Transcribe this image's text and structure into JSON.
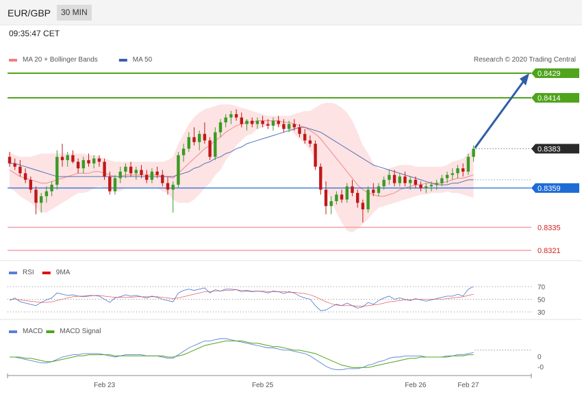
{
  "header": {
    "symbol": "EUR/GBP",
    "timeframe": "30 MIN",
    "time": "09:35:47 CET"
  },
  "legend": {
    "main": [
      {
        "name": "MA 20 + Bollinger Bands",
        "color": "#f08080"
      },
      {
        "name": "MA 50",
        "color": "#3b5ea8"
      }
    ],
    "rsi": [
      {
        "name": "RSI",
        "color": "#5b7fd6"
      },
      {
        "name": "9MA",
        "color": "#e01010"
      }
    ],
    "macd": [
      {
        "name": "MACD",
        "color": "#5b7fd6"
      },
      {
        "name": "MACD Signal",
        "color": "#4fa41c"
      }
    ]
  },
  "credit": "Research © 2020 Trading Central",
  "colors": {
    "up": "#3b9a26",
    "down": "#c01818",
    "bb_fill": "#fde0e0",
    "target": "#4fa41c",
    "pivot": "#1e6bd6",
    "support": "#f4a0a8",
    "arrow": "#2f5ea8"
  },
  "levels": [
    {
      "value": 0.8429,
      "label": "0.8429",
      "kind": "target"
    },
    {
      "value": 0.8414,
      "label": "0.8414",
      "kind": "target"
    },
    {
      "value": 0.8383,
      "label": "0.8383",
      "kind": "last"
    },
    {
      "value": 0.8359,
      "label": "0.8359",
      "kind": "pivot"
    },
    {
      "value": 0.8335,
      "label": "0.8335",
      "kind": "support"
    },
    {
      "value": 0.8321,
      "label": "0.8321",
      "kind": "support"
    }
  ],
  "rsi_levels": [
    {
      "value": 70,
      "label": "70"
    },
    {
      "value": 50,
      "label": "50"
    },
    {
      "value": 30,
      "label": "30"
    }
  ],
  "macd_labels": [
    {
      "value": 0,
      "label": "0"
    },
    {
      "value": -0.0009,
      "label": "-0"
    }
  ],
  "x_labels": [
    {
      "i": 18,
      "label": "Feb 23"
    },
    {
      "i": 48,
      "label": "Feb 25"
    },
    {
      "i": 77,
      "label": "Feb 26"
    },
    {
      "i": 87,
      "label": "Feb 27"
    }
  ],
  "chart_data": {
    "type": "candlestick",
    "title": "EUR/GBP 30 MIN",
    "ylim": [
      0.8314,
      0.8436
    ],
    "candles": [
      [
        0.8378,
        0.8381,
        0.8372,
        0.8374
      ],
      [
        0.8374,
        0.8377,
        0.837,
        0.8372
      ],
      [
        0.8372,
        0.8376,
        0.8366,
        0.8368
      ],
      [
        0.8368,
        0.8371,
        0.8362,
        0.8364
      ],
      [
        0.8364,
        0.8366,
        0.8356,
        0.8358
      ],
      [
        0.8358,
        0.836,
        0.8343,
        0.835
      ],
      [
        0.835,
        0.8356,
        0.8344,
        0.8354
      ],
      [
        0.8354,
        0.836,
        0.835,
        0.8357
      ],
      [
        0.8357,
        0.8363,
        0.8354,
        0.8361
      ],
      [
        0.8361,
        0.8382,
        0.8358,
        0.8378
      ],
      [
        0.8378,
        0.8386,
        0.8372,
        0.8376
      ],
      [
        0.8376,
        0.8381,
        0.8372,
        0.8379
      ],
      [
        0.8379,
        0.8382,
        0.8374,
        0.8375
      ],
      [
        0.8375,
        0.8377,
        0.8368,
        0.8371
      ],
      [
        0.8371,
        0.8378,
        0.8368,
        0.8376
      ],
      [
        0.8376,
        0.838,
        0.8372,
        0.8374
      ],
      [
        0.8374,
        0.8379,
        0.8371,
        0.8377
      ],
      [
        0.8377,
        0.8379,
        0.8372,
        0.8375
      ],
      [
        0.8375,
        0.8377,
        0.8364,
        0.8366
      ],
      [
        0.8366,
        0.8369,
        0.8355,
        0.8357
      ],
      [
        0.8357,
        0.8367,
        0.8355,
        0.8365
      ],
      [
        0.8365,
        0.8372,
        0.8362,
        0.8369
      ],
      [
        0.8369,
        0.8374,
        0.8365,
        0.8372
      ],
      [
        0.8372,
        0.8375,
        0.8366,
        0.8368
      ],
      [
        0.8368,
        0.8372,
        0.8364,
        0.837
      ],
      [
        0.837,
        0.8373,
        0.8365,
        0.8367
      ],
      [
        0.8367,
        0.837,
        0.8362,
        0.8364
      ],
      [
        0.8364,
        0.8371,
        0.8362,
        0.8369
      ],
      [
        0.8369,
        0.8372,
        0.8365,
        0.8367
      ],
      [
        0.8367,
        0.837,
        0.836,
        0.8362
      ],
      [
        0.8362,
        0.8366,
        0.8355,
        0.8358
      ],
      [
        0.8358,
        0.8363,
        0.8344,
        0.8361
      ],
      [
        0.8361,
        0.8381,
        0.8359,
        0.8379
      ],
      [
        0.8379,
        0.8386,
        0.8375,
        0.8383
      ],
      [
        0.8383,
        0.8393,
        0.8381,
        0.839
      ],
      [
        0.839,
        0.8396,
        0.8385,
        0.8387
      ],
      [
        0.8387,
        0.8394,
        0.8382,
        0.8392
      ],
      [
        0.8392,
        0.8399,
        0.8386,
        0.8388
      ],
      [
        0.8388,
        0.839,
        0.8376,
        0.8378
      ],
      [
        0.8378,
        0.8396,
        0.8376,
        0.8393
      ],
      [
        0.8393,
        0.8401,
        0.839,
        0.8399
      ],
      [
        0.8399,
        0.8404,
        0.8396,
        0.8402
      ],
      [
        0.8402,
        0.8406,
        0.8398,
        0.8404
      ],
      [
        0.8404,
        0.8407,
        0.84,
        0.8402
      ],
      [
        0.8402,
        0.8405,
        0.8396,
        0.8398
      ],
      [
        0.8398,
        0.8401,
        0.8394,
        0.84
      ],
      [
        0.84,
        0.8402,
        0.8396,
        0.8398
      ],
      [
        0.8398,
        0.8402,
        0.8395,
        0.84
      ],
      [
        0.84,
        0.8403,
        0.8396,
        0.8398
      ],
      [
        0.8398,
        0.8401,
        0.8395,
        0.8397
      ],
      [
        0.8397,
        0.8402,
        0.8394,
        0.84
      ],
      [
        0.84,
        0.8403,
        0.8396,
        0.8398
      ],
      [
        0.8398,
        0.8401,
        0.8393,
        0.8395
      ],
      [
        0.8395,
        0.84,
        0.8393,
        0.8398
      ],
      [
        0.8398,
        0.8401,
        0.8394,
        0.8396
      ],
      [
        0.8396,
        0.8398,
        0.839,
        0.8392
      ],
      [
        0.8392,
        0.8395,
        0.8386,
        0.8388
      ],
      [
        0.8388,
        0.8391,
        0.8384,
        0.8386
      ],
      [
        0.8386,
        0.8388,
        0.837,
        0.8372
      ],
      [
        0.8372,
        0.8374,
        0.8355,
        0.8358
      ],
      [
        0.8358,
        0.8363,
        0.8343,
        0.8348
      ],
      [
        0.8348,
        0.8354,
        0.8343,
        0.8351
      ],
      [
        0.8351,
        0.8357,
        0.8349,
        0.8355
      ],
      [
        0.8355,
        0.8358,
        0.835,
        0.8352
      ],
      [
        0.8352,
        0.8362,
        0.835,
        0.836
      ],
      [
        0.836,
        0.8364,
        0.8354,
        0.8356
      ],
      [
        0.8356,
        0.8358,
        0.8347,
        0.835
      ],
      [
        0.835,
        0.8352,
        0.8338,
        0.8346
      ],
      [
        0.8346,
        0.836,
        0.8344,
        0.8358
      ],
      [
        0.8358,
        0.8362,
        0.8354,
        0.8356
      ],
      [
        0.8356,
        0.8362,
        0.8354,
        0.836
      ],
      [
        0.836,
        0.8366,
        0.8358,
        0.8364
      ],
      [
        0.8364,
        0.837,
        0.8361,
        0.8367
      ],
      [
        0.8367,
        0.837,
        0.836,
        0.8362
      ],
      [
        0.8362,
        0.8368,
        0.836,
        0.8366
      ],
      [
        0.8366,
        0.8369,
        0.836,
        0.8362
      ],
      [
        0.8362,
        0.8366,
        0.8358,
        0.8364
      ],
      [
        0.8364,
        0.8366,
        0.8359,
        0.8361
      ],
      [
        0.8361,
        0.8363,
        0.8357,
        0.8359
      ],
      [
        0.8359,
        0.8362,
        0.8356,
        0.836
      ],
      [
        0.836,
        0.8363,
        0.8357,
        0.8361
      ],
      [
        0.8361,
        0.8364,
        0.8358,
        0.8362
      ],
      [
        0.8362,
        0.8367,
        0.836,
        0.8365
      ],
      [
        0.8365,
        0.8369,
        0.8362,
        0.8367
      ],
      [
        0.8367,
        0.8371,
        0.8364,
        0.8368
      ],
      [
        0.8368,
        0.8373,
        0.8365,
        0.8371
      ],
      [
        0.8371,
        0.8374,
        0.8366,
        0.8369
      ],
      [
        0.8369,
        0.838,
        0.8367,
        0.8378
      ],
      [
        0.8378,
        0.8385,
        0.8375,
        0.8383
      ]
    ],
    "ma20": [
      0.837,
      0.8368,
      0.8366,
      0.8365,
      0.8364,
      0.8363,
      0.8362,
      0.8362,
      0.8363,
      0.8364,
      0.8365,
      0.8366,
      0.8367,
      0.8368,
      0.8368,
      0.8368,
      0.8369,
      0.8369,
      0.8368,
      0.8367,
      0.8366,
      0.8366,
      0.8367,
      0.8367,
      0.8367,
      0.8367,
      0.8367,
      0.8367,
      0.8367,
      0.8366,
      0.8366,
      0.8365,
      0.8368,
      0.8371,
      0.8374,
      0.8377,
      0.838,
      0.8383,
      0.8385,
      0.8388,
      0.839,
      0.8393,
      0.8395,
      0.8397,
      0.8398,
      0.8399,
      0.8399,
      0.84,
      0.84,
      0.84,
      0.84,
      0.84,
      0.8399,
      0.8399,
      0.8398,
      0.8397,
      0.8396,
      0.8394,
      0.8392,
      0.8389,
      0.8385,
      0.8381,
      0.8377,
      0.8373,
      0.8369,
      0.8365,
      0.8361,
      0.8358,
      0.8356,
      0.8355,
      0.8354,
      0.8354,
      0.8355,
      0.8356,
      0.8358,
      0.8359,
      0.836,
      0.8361,
      0.8361,
      0.8362,
      0.8362,
      0.8362,
      0.8362,
      0.8363,
      0.8364,
      0.8365,
      0.8365,
      0.8366,
      0.8367
    ],
    "bb_upper": [
      0.8381,
      0.8379,
      0.8378,
      0.8378,
      0.8378,
      0.8379,
      0.838,
      0.838,
      0.838,
      0.838,
      0.838,
      0.838,
      0.838,
      0.838,
      0.838,
      0.8379,
      0.8379,
      0.8378,
      0.8377,
      0.8376,
      0.8375,
      0.8375,
      0.8375,
      0.8375,
      0.8375,
      0.8375,
      0.8375,
      0.8375,
      0.8375,
      0.8375,
      0.8376,
      0.8378,
      0.8386,
      0.8392,
      0.8398,
      0.8402,
      0.8405,
      0.8407,
      0.8408,
      0.8409,
      0.841,
      0.841,
      0.841,
      0.8409,
      0.8408,
      0.8407,
      0.8406,
      0.8405,
      0.8404,
      0.8403,
      0.8403,
      0.8403,
      0.8403,
      0.8403,
      0.8404,
      0.8405,
      0.8406,
      0.8406,
      0.8408,
      0.841,
      0.8411,
      0.8411,
      0.841,
      0.8408,
      0.8405,
      0.84,
      0.8393,
      0.8385,
      0.838,
      0.8374,
      0.8371,
      0.837,
      0.8371,
      0.8372,
      0.8373,
      0.8373,
      0.8373,
      0.8372,
      0.8372,
      0.8372,
      0.8372,
      0.8372,
      0.8372,
      0.8373,
      0.8375,
      0.8376,
      0.8377,
      0.838,
      0.8383
    ],
    "bb_lower": [
      0.8359,
      0.8357,
      0.8354,
      0.8352,
      0.835,
      0.8347,
      0.8344,
      0.8344,
      0.8346,
      0.8348,
      0.835,
      0.8352,
      0.8354,
      0.8356,
      0.8356,
      0.8357,
      0.8359,
      0.836,
      0.8359,
      0.8358,
      0.8357,
      0.8357,
      0.8359,
      0.8359,
      0.8359,
      0.8359,
      0.8359,
      0.8359,
      0.8359,
      0.8357,
      0.8356,
      0.8352,
      0.835,
      0.835,
      0.835,
      0.8352,
      0.8355,
      0.8359,
      0.8362,
      0.8367,
      0.837,
      0.8376,
      0.838,
      0.8385,
      0.8388,
      0.8391,
      0.8392,
      0.8395,
      0.8396,
      0.8397,
      0.8397,
      0.8397,
      0.8395,
      0.8395,
      0.8392,
      0.8389,
      0.8386,
      0.8382,
      0.8376,
      0.8368,
      0.8359,
      0.8351,
      0.8344,
      0.8338,
      0.8333,
      0.8332,
      0.8334,
      0.8337,
      0.834,
      0.8344,
      0.8347,
      0.8348,
      0.8349,
      0.835,
      0.8351,
      0.8352,
      0.8353,
      0.8354,
      0.8355,
      0.8355,
      0.8356,
      0.8356,
      0.8356,
      0.8357,
      0.8356,
      0.8356,
      0.8355,
      0.8354,
      0.8353
    ],
    "ma50": [
      0.8374,
      0.8374,
      0.8373,
      0.8372,
      0.8371,
      0.837,
      0.8369,
      0.8368,
      0.8367,
      0.8366,
      0.8366,
      0.8366,
      0.8366,
      0.8366,
      0.8366,
      0.8366,
      0.8366,
      0.8366,
      0.8366,
      0.8366,
      0.8366,
      0.8366,
      0.8366,
      0.8366,
      0.8366,
      0.8366,
      0.8366,
      0.8366,
      0.8366,
      0.8366,
      0.8366,
      0.8366,
      0.8367,
      0.8368,
      0.8369,
      0.8371,
      0.8372,
      0.8374,
      0.8375,
      0.8377,
      0.8378,
      0.838,
      0.8381,
      0.8383,
      0.8384,
      0.8386,
      0.8387,
      0.8388,
      0.8389,
      0.839,
      0.8391,
      0.8392,
      0.8393,
      0.8394,
      0.8395,
      0.8396,
      0.8396,
      0.8395,
      0.8394,
      0.8393,
      0.8391,
      0.8389,
      0.8387,
      0.8385,
      0.8383,
      0.8381,
      0.8379,
      0.8377,
      0.8375,
      0.8373,
      0.8372,
      0.8371,
      0.837,
      0.8369,
      0.8368,
      0.8367,
      0.8366,
      0.8365,
      0.8364,
      0.8363,
      0.8362,
      0.8361,
      0.8361,
      0.8361,
      0.8362,
      0.8362,
      0.8363,
      0.8364,
      0.8364
    ],
    "rsi": [
      48,
      52,
      46,
      44,
      42,
      40,
      45,
      49,
      52,
      60,
      58,
      56,
      57,
      55,
      54,
      55,
      56,
      55,
      50,
      45,
      52,
      54,
      57,
      55,
      56,
      54,
      52,
      55,
      53,
      50,
      48,
      46,
      60,
      64,
      66,
      64,
      66,
      68,
      60,
      65,
      63,
      66,
      66,
      65,
      62,
      63,
      62,
      63,
      62,
      60,
      63,
      62,
      59,
      62,
      60,
      55,
      52,
      50,
      40,
      32,
      33,
      38,
      42,
      40,
      44,
      40,
      36,
      38,
      45,
      42,
      48,
      52,
      55,
      50,
      52,
      50,
      48,
      51,
      49,
      47,
      49,
      51,
      53,
      55,
      55,
      58,
      55,
      66,
      70
    ],
    "rsi_ma": [
      50,
      50,
      49,
      48,
      47,
      46,
      45,
      45,
      46,
      48,
      50,
      52,
      54,
      55,
      55,
      56,
      56,
      56,
      55,
      54,
      53,
      53,
      53,
      53,
      54,
      54,
      54,
      54,
      54,
      53,
      52,
      51,
      52,
      54,
      56,
      58,
      60,
      62,
      62,
      63,
      63,
      64,
      64,
      65,
      64,
      64,
      63,
      63,
      63,
      62,
      62,
      62,
      62,
      61,
      61,
      60,
      59,
      57,
      54,
      50,
      46,
      43,
      41,
      40,
      40,
      40,
      39,
      39,
      40,
      41,
      42,
      44,
      46,
      47,
      48,
      49,
      49,
      50,
      50,
      50,
      50,
      50,
      50,
      51,
      52,
      53,
      54,
      56,
      58
    ],
    "macd": [
      0.0,
      0.0,
      -0.0001,
      -0.0002,
      -0.0003,
      -0.0004,
      -0.0005,
      -0.0005,
      -0.0004,
      -0.0002,
      0.0,
      0.0001,
      0.0002,
      0.0002,
      0.0003,
      0.0003,
      0.0003,
      0.0003,
      0.0002,
      0.0001,
      0.0,
      0.0001,
      0.0002,
      0.0002,
      0.0002,
      0.0002,
      0.0001,
      0.0001,
      0.0001,
      0.0,
      -0.0001,
      -0.0001,
      0.0002,
      0.0005,
      0.0008,
      0.001,
      0.0012,
      0.0014,
      0.0014,
      0.0015,
      0.0016,
      0.0016,
      0.0015,
      0.0014,
      0.0013,
      0.0012,
      0.0011,
      0.001,
      0.0009,
      0.0008,
      0.0008,
      0.0007,
      0.0006,
      0.0006,
      0.0005,
      0.0004,
      0.0003,
      0.0001,
      -0.0002,
      -0.0005,
      -0.0008,
      -0.001,
      -0.0011,
      -0.0011,
      -0.001,
      -0.001,
      -0.001,
      -0.0009,
      -0.0007,
      -0.0006,
      -0.0004,
      -0.0003,
      -0.0001,
      0.0,
      0.0,
      0.0001,
      0.0001,
      0.0001,
      0.0001,
      0.0,
      0.0,
      0.0,
      0.0,
      0.0001,
      0.0001,
      0.0002,
      0.0002,
      0.0003,
      0.0004
    ],
    "macd_signal": [
      0.0,
      0.0,
      0.0,
      -0.0001,
      -0.0001,
      -0.0002,
      -0.0003,
      -0.0004,
      -0.0004,
      -0.0003,
      -0.0002,
      -0.0001,
      0.0,
      0.0001,
      0.0001,
      0.0002,
      0.0002,
      0.0002,
      0.0002,
      0.0002,
      0.0001,
      0.0001,
      0.0001,
      0.0001,
      0.0001,
      0.0001,
      0.0001,
      0.0001,
      0.0001,
      0.0001,
      0.0,
      0.0,
      0.0001,
      0.0002,
      0.0004,
      0.0006,
      0.0008,
      0.001,
      0.0011,
      0.0012,
      0.0013,
      0.0014,
      0.0014,
      0.0014,
      0.0014,
      0.0013,
      0.0012,
      0.0012,
      0.0011,
      0.001,
      0.0009,
      0.0009,
      0.0008,
      0.0007,
      0.0006,
      0.0006,
      0.0005,
      0.0004,
      0.0003,
      0.0001,
      -0.0001,
      -0.0003,
      -0.0005,
      -0.0007,
      -0.0008,
      -0.0009,
      -0.0009,
      -0.0009,
      -0.0009,
      -0.0008,
      -0.0007,
      -0.0006,
      -0.0005,
      -0.0004,
      -0.0003,
      -0.0002,
      -0.0001,
      -0.0001,
      0.0,
      0.0,
      0.0,
      0.0,
      0.0,
      0.0,
      0.0001,
      0.0001,
      0.0001,
      0.0002,
      0.0002
    ]
  }
}
